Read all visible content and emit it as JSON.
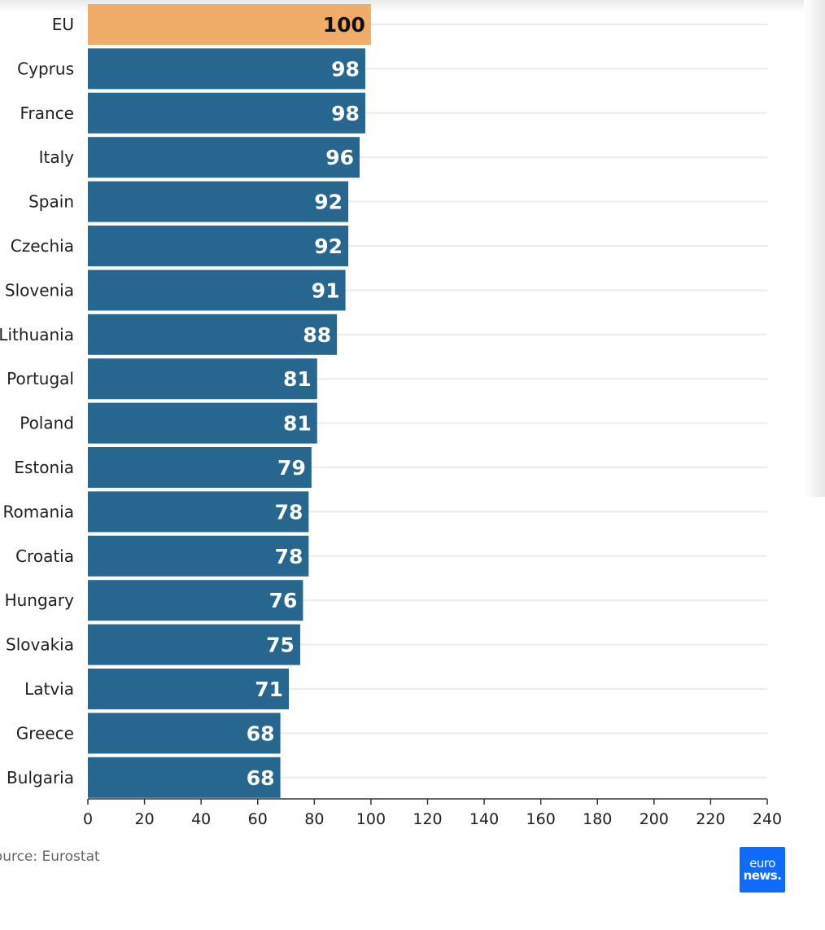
{
  "chart_data": {
    "type": "bar",
    "orientation": "horizontal",
    "categories": [
      "EU",
      "Cyprus",
      "France",
      "Italy",
      "Spain",
      "Czechia",
      "Slovenia",
      "Lithuania",
      "Portugal",
      "Poland",
      "Estonia",
      "Romania",
      "Croatia",
      "Hungary",
      "Slovakia",
      "Latvia",
      "Greece",
      "Bulgaria"
    ],
    "values": [
      100,
      98,
      98,
      96,
      92,
      92,
      91,
      88,
      81,
      81,
      79,
      78,
      78,
      76,
      75,
      71,
      68,
      68
    ],
    "xlim": [
      0,
      240
    ],
    "xticks": [
      0,
      20,
      40,
      60,
      80,
      100,
      120,
      140,
      160,
      180,
      200,
      220,
      240
    ],
    "grid": true,
    "colors": {
      "default_bar": "#26668f",
      "highlight_bar": "#f0ad6a",
      "highlight_category": "EU",
      "value_label_on_default": "#ffffff",
      "value_label_on_highlight": "#111111",
      "gridline": "#ececec"
    }
  },
  "footer": {
    "source_text": "Source: Eurostat",
    "logo_line1": "euro",
    "logo_line2": "news."
  }
}
